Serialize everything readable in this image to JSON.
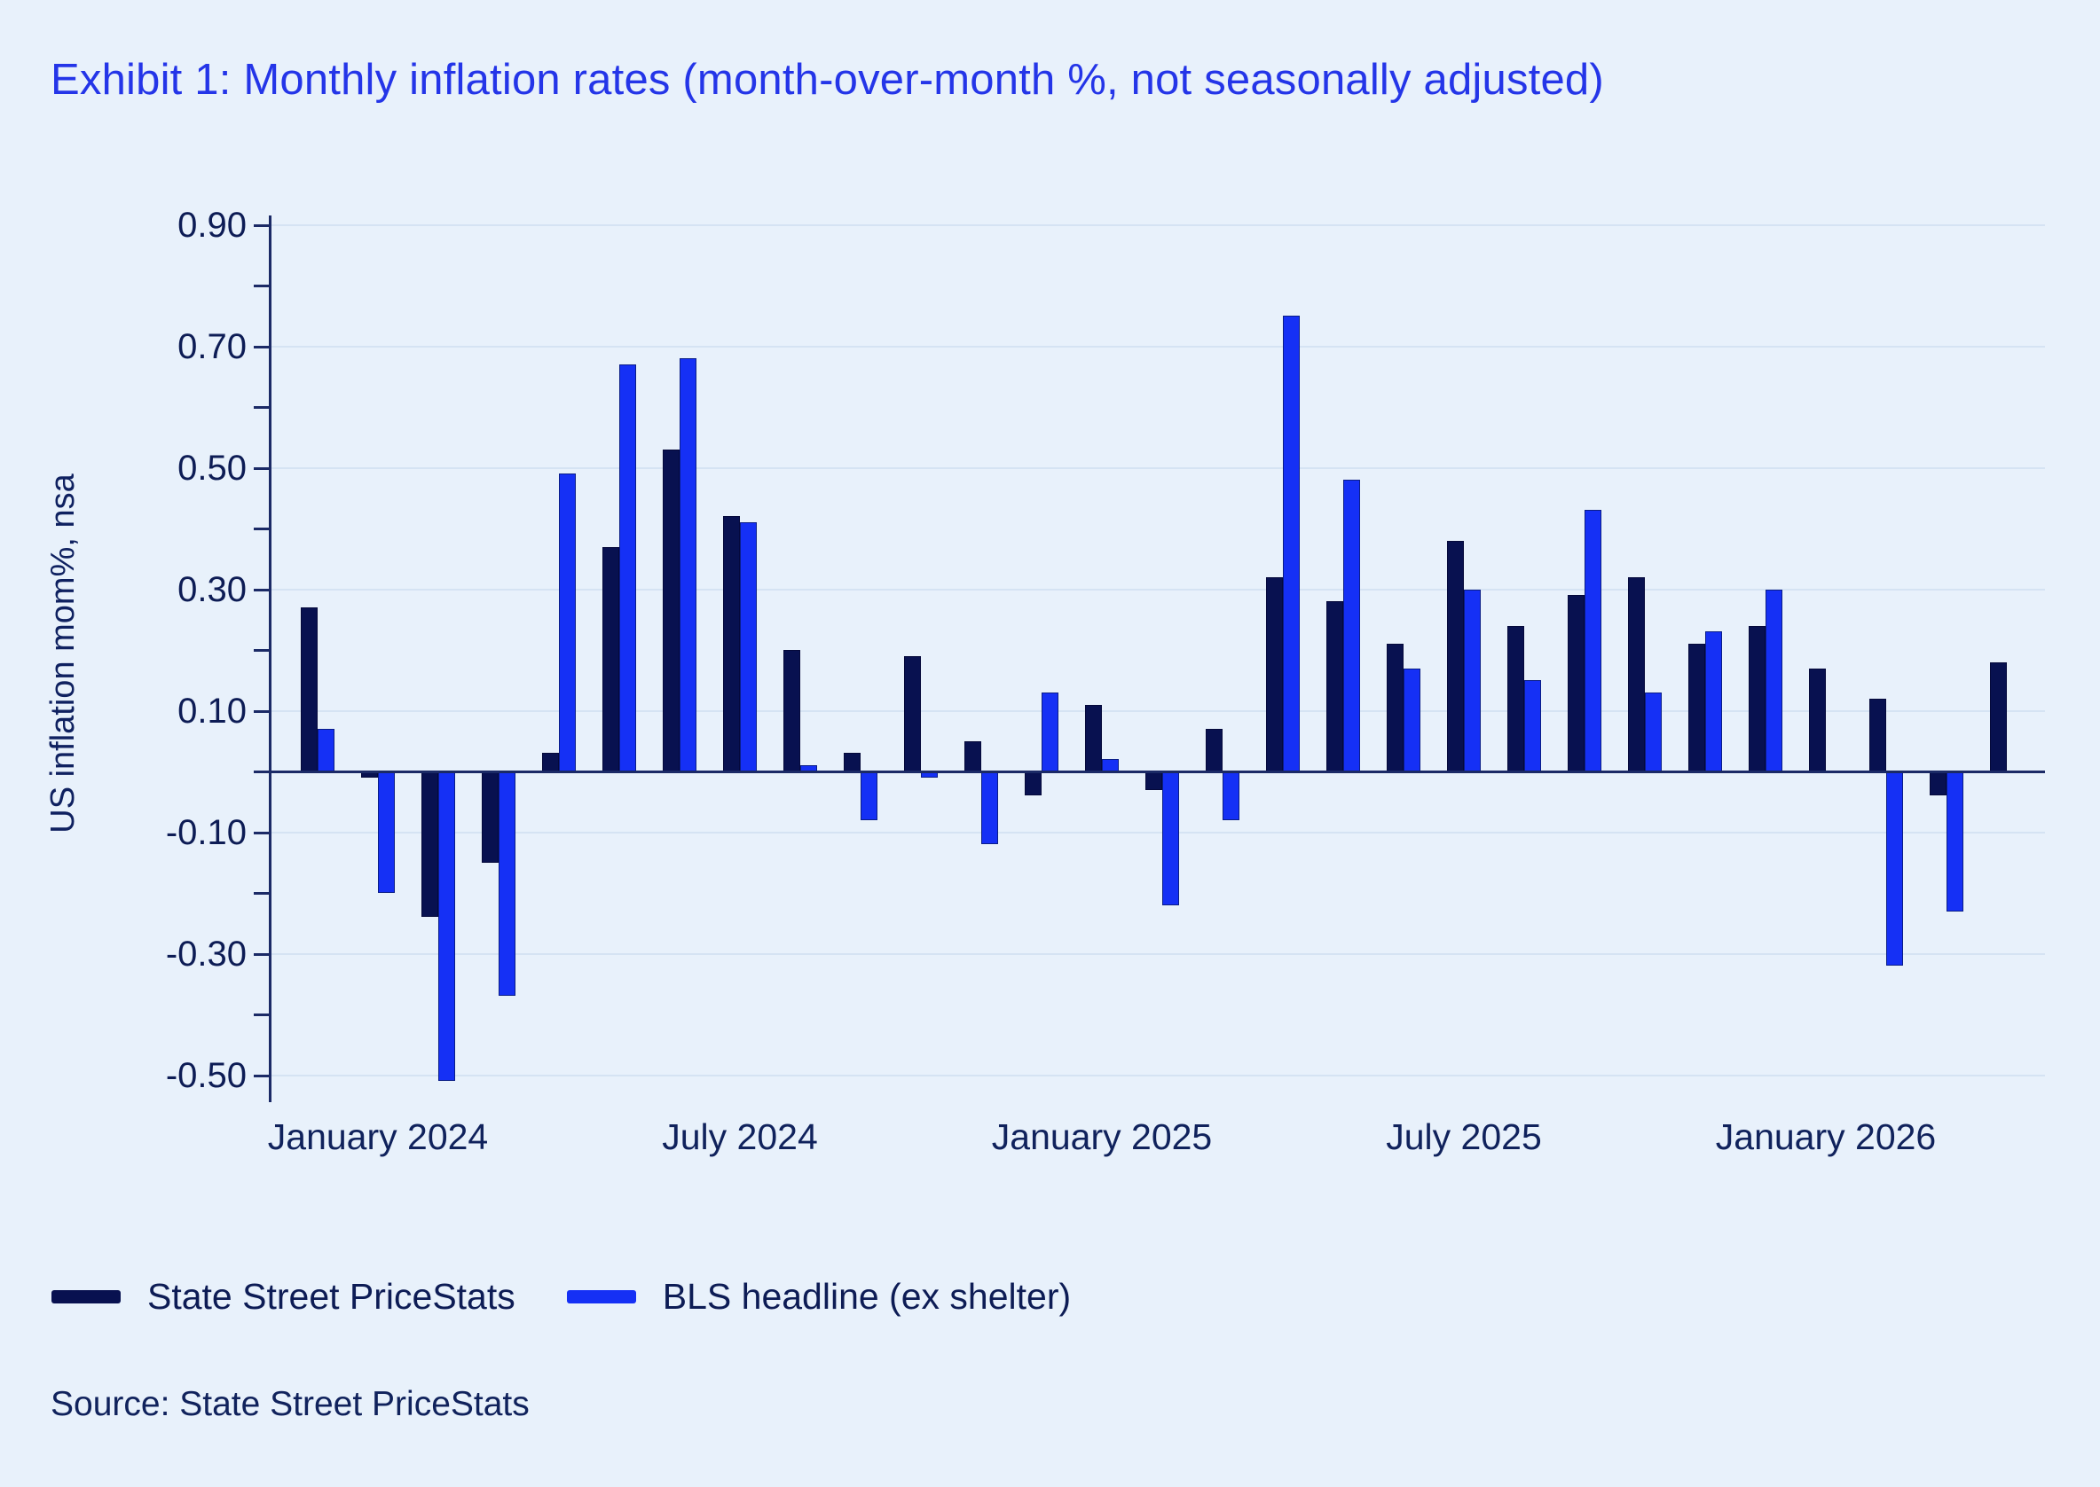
{
  "page": {
    "background_color": "#e8f1fb",
    "accent_color": "#2435e8"
  },
  "chart_data": {
    "type": "bar",
    "title": "Exhibit 1: Monthly inflation rates (month-over-month %, not seasonally adjusted)",
    "ylabel": "US inflation mom%, nsa",
    "xlabel": "",
    "source": "Source: State Street PriceStats",
    "grid": "horizontal",
    "legend_position": "bottom-left",
    "ylim": [
      -0.55,
      0.92
    ],
    "y_major_tick_step": 0.2,
    "y_minor_tick_step": 0.1,
    "y_tick_labels": [
      "0.90",
      "0.70",
      "0.50",
      "0.30",
      "0.10",
      "-0.10",
      "-0.30",
      "-0.50"
    ],
    "y_tick_values": [
      0.9,
      0.7,
      0.5,
      0.3,
      0.1,
      -0.1,
      -0.3,
      -0.5
    ],
    "x_tick_labels": [
      "January 2024",
      "July 2024",
      "January 2025",
      "July 2025",
      "January 2026"
    ],
    "x_tick_month_index": [
      1,
      7,
      13,
      19,
      25
    ],
    "categories": [
      "Dec 2023",
      "Jan 2024",
      "Feb 2024",
      "Mar 2024",
      "Apr 2024",
      "May 2024",
      "Jun 2024",
      "Jul 2024",
      "Aug 2024",
      "Sep 2024",
      "Oct 2024",
      "Nov 2024",
      "Dec 2024",
      "Jan 2025",
      "Feb 2025",
      "Mar 2025",
      "Apr 2025",
      "May 2025",
      "Jun 2025",
      "Jul 2025",
      "Aug 2025",
      "Sep 2025",
      "Oct 2025",
      "Nov 2025",
      "Dec 2025",
      "Jan 2026",
      "Feb 2026",
      "Mar 2026",
      "Apr 2026"
    ],
    "series": [
      {
        "name": "State Street PriceStats",
        "color": "#081150",
        "values": [
          0.27,
          -0.01,
          -0.24,
          -0.15,
          0.03,
          0.37,
          0.53,
          0.42,
          0.2,
          0.03,
          0.19,
          0.05,
          -0.04,
          0.11,
          -0.03,
          0.07,
          0.32,
          0.28,
          0.21,
          0.38,
          0.24,
          0.29,
          0.32,
          0.21,
          0.24,
          0.17,
          0.12,
          -0.04,
          0.18
        ]
      },
      {
        "name": "BLS headline (ex shelter)",
        "color": "#1530f5",
        "values": [
          0.07,
          -0.2,
          -0.51,
          -0.37,
          0.49,
          0.67,
          0.68,
          0.41,
          0.01,
          -0.08,
          -0.01,
          -0.12,
          0.13,
          0.02,
          -0.22,
          -0.08,
          0.75,
          0.48,
          0.17,
          0.3,
          0.15,
          0.43,
          0.13,
          0.23,
          0.3,
          null,
          -0.32,
          -0.23,
          null
        ]
      }
    ]
  }
}
